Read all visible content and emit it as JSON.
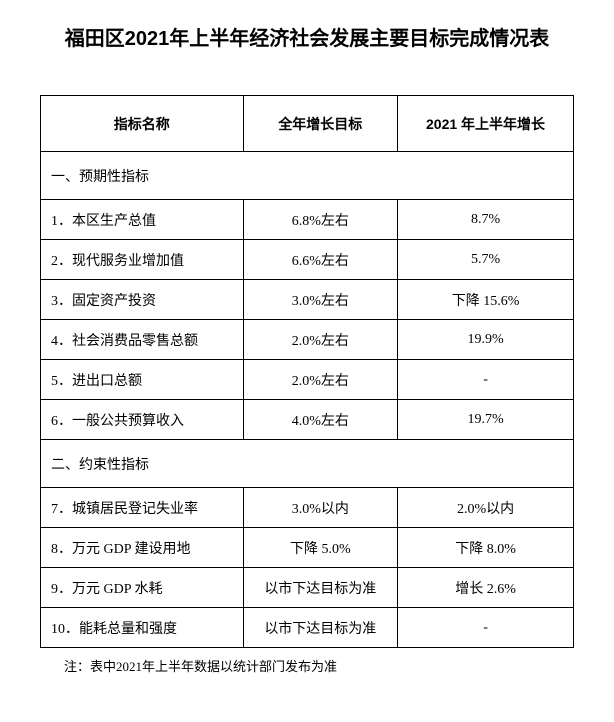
{
  "title": "福田区2021年上半年经济社会发展主要目标完成情况表",
  "headers": {
    "name": "指标名称",
    "target": "全年增长目标",
    "actual": "2021 年上半年增长"
  },
  "section1": "一、预期性指标",
  "rows1": [
    {
      "name": "1．本区生产总值",
      "target": "6.8%左右",
      "actual": "8.7%"
    },
    {
      "name": "2．现代服务业增加值",
      "target": "6.6%左右",
      "actual": "5.7%"
    },
    {
      "name": "3．固定资产投资",
      "target": "3.0%左右",
      "actual": "下降 15.6%"
    },
    {
      "name": "4．社会消费品零售总额",
      "target": "2.0%左右",
      "actual": "19.9%"
    },
    {
      "name": "5．进出口总额",
      "target": "2.0%左右",
      "actual": "-"
    },
    {
      "name": "6．一般公共预算收入",
      "target": "4.0%左右",
      "actual": "19.7%"
    }
  ],
  "section2": "二、约束性指标",
  "rows2": [
    {
      "name": "7．城镇居民登记失业率",
      "target": "3.0%以内",
      "actual": "2.0%以内"
    },
    {
      "name": "8．万元 GDP 建设用地",
      "target": "下降 5.0%",
      "actual": "下降 8.0%"
    },
    {
      "name": "9．万元 GDP 水耗",
      "target": "以市下达目标为准",
      "actual": "增长 2.6%"
    },
    {
      "name": "10．能耗总量和强度",
      "target": "以市下达目标为准",
      "actual": "-"
    }
  ],
  "note": "注：表中2021年上半年数据以统计部门发布为准"
}
